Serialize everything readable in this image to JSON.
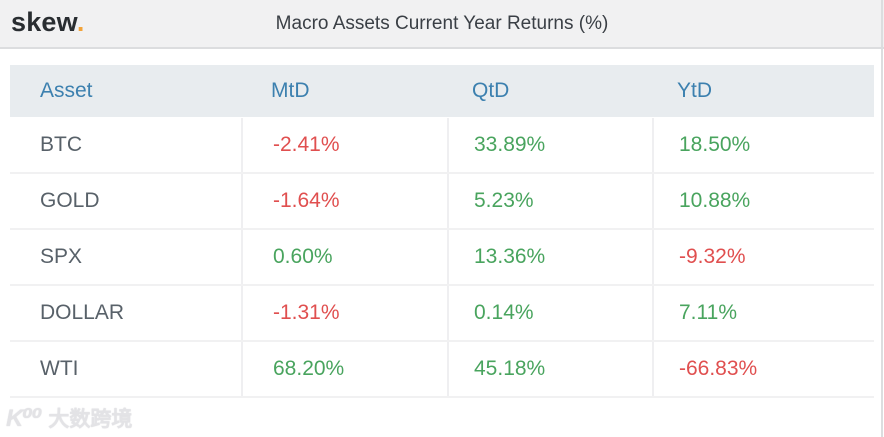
{
  "topbar": {
    "logo_text": "skew",
    "logo_dot": ".",
    "title": "Macro Assets Current Year Returns (%)"
  },
  "table": {
    "columns": [
      "Asset",
      "MtD",
      "QtD",
      "YtD"
    ],
    "rows": [
      {
        "asset": "BTC",
        "values": [
          "-2.41%",
          "33.89%",
          "18.50%"
        ]
      },
      {
        "asset": "GOLD",
        "values": [
          "-1.64%",
          "5.23%",
          "10.88%"
        ]
      },
      {
        "asset": "SPX",
        "values": [
          "0.60%",
          "13.36%",
          "-9.32%"
        ]
      },
      {
        "asset": "DOLLAR",
        "values": [
          "-1.31%",
          "0.14%",
          "7.11%"
        ]
      },
      {
        "asset": "WTI",
        "values": [
          "68.20%",
          "45.18%",
          "-66.83%"
        ]
      }
    ]
  },
  "chart_data": {
    "type": "table",
    "title": "Macro Assets Current Year Returns (%)",
    "columns": [
      "Asset",
      "MtD",
      "QtD",
      "YtD"
    ],
    "rows": [
      [
        "BTC",
        -2.41,
        33.89,
        18.5
      ],
      [
        "GOLD",
        -1.64,
        5.23,
        10.88
      ],
      [
        "SPX",
        0.6,
        13.36,
        -9.32
      ],
      [
        "DOLLAR",
        -1.31,
        0.14,
        7.11
      ],
      [
        "WTI",
        68.2,
        45.18,
        -66.83
      ]
    ],
    "units": "%"
  },
  "watermark": {
    "icon_text": "K⁰⁰",
    "label": "大数跨境"
  },
  "colors": {
    "positive": "#49a45e",
    "negative": "#e04f4f",
    "header_blue": "#3c80af",
    "logo_orange": "#f2a33a",
    "header_row_bg": "#e8ecef",
    "topbar_bg": "#f1f1f2"
  }
}
